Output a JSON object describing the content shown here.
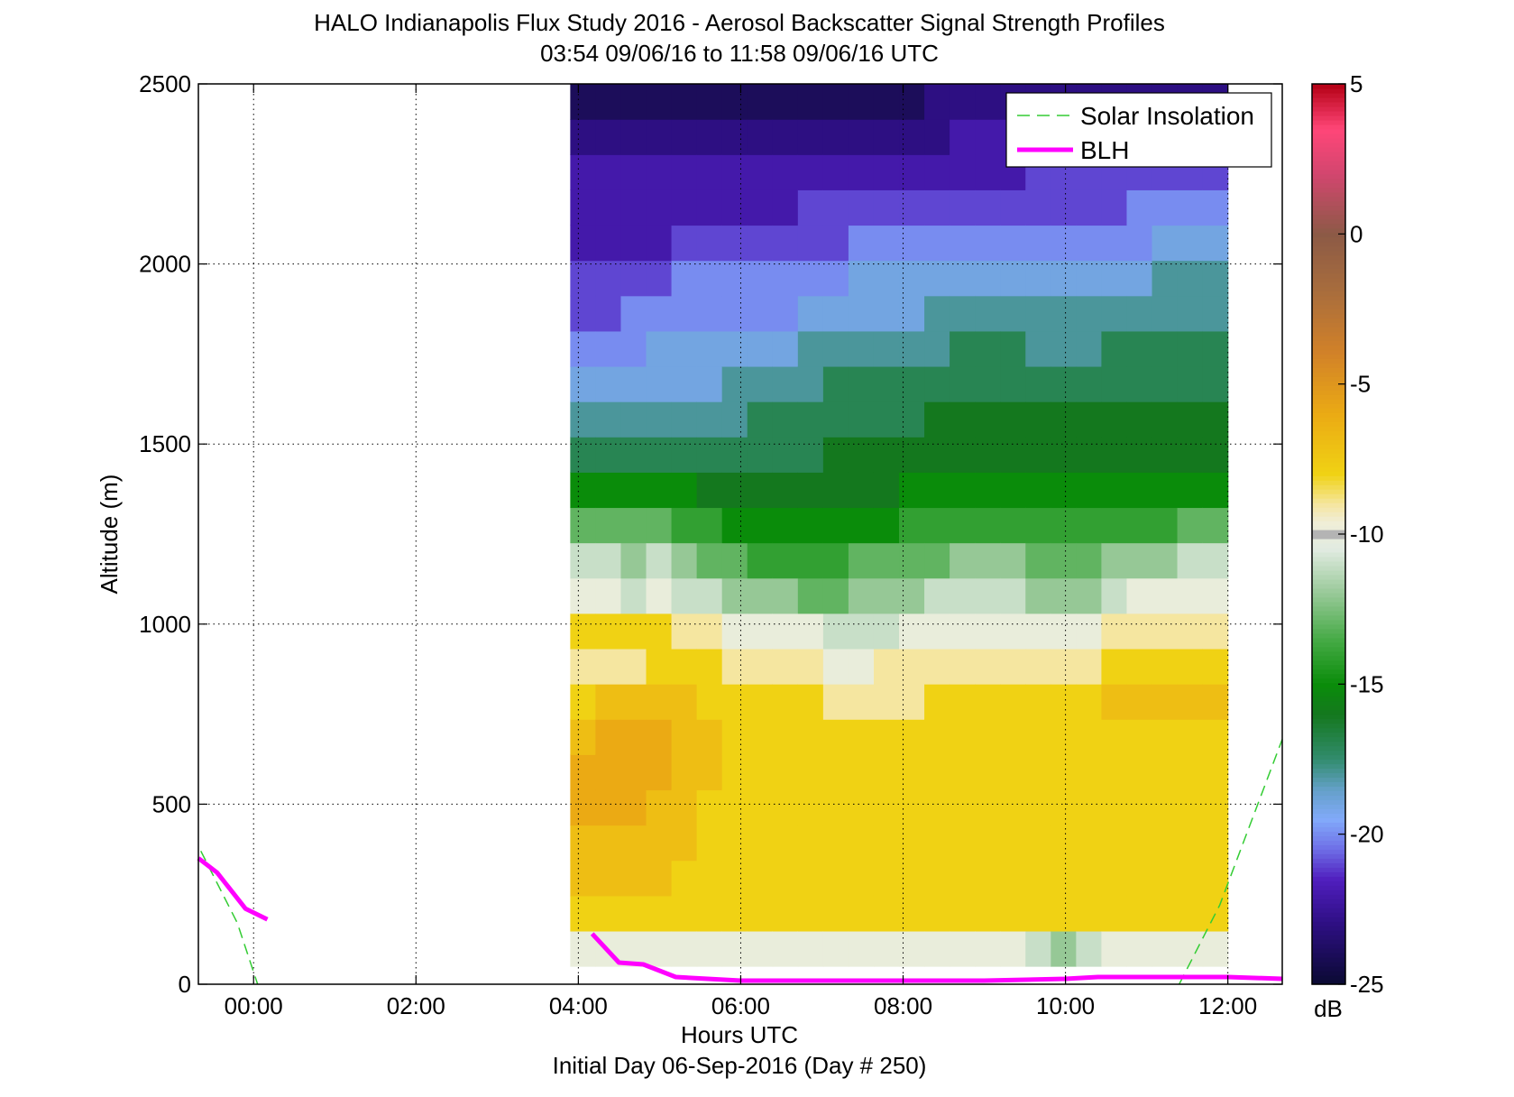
{
  "chart_data": {
    "type": "heatmap",
    "title": "HALO Indianapolis Flux Study 2016 - Aerosol Backscatter Signal Strength Profiles",
    "subtitle": "03:54 09/06/16 to 11:58 09/06/16  UTC",
    "xlabel": "Hours UTC",
    "xlabel2": "Initial Day 06-Sep-2016 (Day # 250)",
    "ylabel": "Altitude (m)",
    "xlim": [
      -0.68,
      12.67
    ],
    "ylim": [
      0,
      2500
    ],
    "x_ticks": [
      0,
      2,
      4,
      6,
      8,
      10,
      12
    ],
    "x_tick_labels": [
      "00:00",
      "02:00",
      "04:00",
      "06:00",
      "08:00",
      "10:00",
      "12:00"
    ],
    "y_ticks": [
      0,
      500,
      1000,
      1500,
      2000,
      2500
    ],
    "y_tick_labels": [
      "0",
      "500",
      "1000",
      "1500",
      "2000",
      "2500"
    ],
    "grid": true,
    "colorbar": {
      "label": "dB",
      "range": [
        -25,
        5
      ],
      "ticks": [
        -25,
        -20,
        -15,
        -10,
        -5,
        0,
        5
      ],
      "tick_labels": [
        "-25",
        "-20",
        "-15",
        "-10",
        "-5",
        "0",
        "5"
      ]
    },
    "heatmap": {
      "x_start": 3.9,
      "x_end": 12.0,
      "y_start": 50,
      "y_end": 2500,
      "no_data_color": "#b4b4b4",
      "profiles_db": [
        [
          -10,
          -8,
          -7,
          -7,
          -6,
          -6,
          -7,
          -8,
          -9,
          -8,
          -10,
          -11,
          -13,
          -15,
          -17,
          -18,
          -19,
          -20,
          -21,
          -21,
          -22,
          -22,
          -22,
          -23,
          -24
        ],
        [
          -10,
          -8,
          -7,
          -7,
          -6,
          -6,
          -6,
          -7,
          -9,
          -8,
          -10,
          -11,
          -13,
          -15,
          -17,
          -18,
          -19,
          -20,
          -21,
          -21,
          -22,
          -22,
          -22,
          -23,
          -24
        ],
        [
          -10,
          -8,
          -7,
          -7,
          -6,
          -6,
          -6,
          -7,
          -9,
          -8,
          -11,
          -12,
          -13,
          -15,
          -17,
          -18,
          -19,
          -20,
          -20,
          -21,
          -22,
          -22,
          -22,
          -23,
          -24
        ],
        [
          -10,
          -8,
          -7,
          -7,
          -7,
          -6,
          -6,
          -7,
          -8,
          -8,
          -10,
          -11,
          -13,
          -15,
          -17,
          -18,
          -19,
          -19,
          -20,
          -21,
          -22,
          -22,
          -22,
          -23,
          -24
        ],
        [
          -10,
          -8,
          -8,
          -7,
          -7,
          -7,
          -7,
          -7,
          -8,
          -9,
          -11,
          -12,
          -14,
          -15,
          -17,
          -18,
          -19,
          -19,
          -20,
          -20,
          -21,
          -22,
          -22,
          -23,
          -24
        ],
        [
          -10,
          -8,
          -8,
          -8,
          -8,
          -7,
          -7,
          -8,
          -8,
          -9,
          -11,
          -13,
          -14,
          -16,
          -17,
          -18,
          -19,
          -19,
          -20,
          -20,
          -21,
          -22,
          -22,
          -23,
          -24
        ],
        [
          -10,
          -8,
          -8,
          -8,
          -8,
          -8,
          -8,
          -8,
          -9,
          -10,
          -12,
          -13,
          -15,
          -16,
          -17,
          -18,
          -18,
          -19,
          -20,
          -20,
          -21,
          -22,
          -22,
          -23,
          -24
        ],
        [
          -10,
          -8,
          -8,
          -8,
          -8,
          -8,
          -8,
          -8,
          -9,
          -10,
          -12,
          -14,
          -15,
          -16,
          -17,
          -17,
          -18,
          -19,
          -20,
          -20,
          -21,
          -22,
          -22,
          -23,
          -24
        ],
        [
          -10,
          -8,
          -8,
          -8,
          -8,
          -8,
          -8,
          -8,
          -9,
          -10,
          -12,
          -14,
          -15,
          -16,
          -17,
          -17,
          -18,
          -19,
          -20,
          -20,
          -21,
          -22,
          -22,
          -23,
          -24
        ],
        [
          -10,
          -8,
          -8,
          -8,
          -8,
          -8,
          -8,
          -8,
          -9,
          -10,
          -13,
          -14,
          -15,
          -16,
          -17,
          -17,
          -18,
          -18,
          -19,
          -20,
          -21,
          -21,
          -22,
          -23,
          -24
        ],
        [
          -10,
          -8,
          -8,
          -8,
          -8,
          -8,
          -8,
          -9,
          -10,
          -11,
          -13,
          -14,
          -15,
          -16,
          -16,
          -17,
          -17,
          -18,
          -19,
          -20,
          -21,
          -21,
          -22,
          -23,
          -24
        ],
        [
          -10,
          -8,
          -8,
          -8,
          -8,
          -8,
          -8,
          -9,
          -10,
          -11,
          -12,
          -13,
          -15,
          -16,
          -16,
          -17,
          -17,
          -18,
          -19,
          -19,
          -20,
          -21,
          -22,
          -23,
          -24
        ],
        [
          -10,
          -8,
          -8,
          -8,
          -8,
          -8,
          -8,
          -9,
          -9,
          -11,
          -12,
          -13,
          -15,
          -16,
          -16,
          -17,
          -17,
          -18,
          -19,
          -19,
          -20,
          -21,
          -22,
          -23,
          -24
        ],
        [
          -10,
          -8,
          -8,
          -8,
          -8,
          -8,
          -8,
          -9,
          -9,
          -10,
          -12,
          -13,
          -14,
          -15,
          -16,
          -17,
          -17,
          -18,
          -19,
          -19,
          -20,
          -21,
          -22,
          -23,
          -24
        ],
        [
          -10,
          -8,
          -8,
          -8,
          -8,
          -8,
          -8,
          -8,
          -9,
          -10,
          -11,
          -13,
          -14,
          -15,
          -16,
          -16,
          -17,
          -18,
          -18,
          -19,
          -20,
          -21,
          -22,
          -23,
          -23
        ],
        [
          -10,
          -8,
          -8,
          -8,
          -8,
          -8,
          -8,
          -8,
          -9,
          -10,
          -11,
          -12,
          -14,
          -15,
          -16,
          -16,
          -17,
          -17,
          -18,
          -19,
          -20,
          -21,
          -22,
          -22,
          -23
        ],
        [
          -10,
          -8,
          -8,
          -8,
          -8,
          -8,
          -8,
          -8,
          -9,
          -10,
          -11,
          -12,
          -14,
          -15,
          -16,
          -16,
          -17,
          -17,
          -18,
          -19,
          -20,
          -21,
          -22,
          -22,
          -23
        ],
        [
          -10,
          -8,
          -8,
          -8,
          -8,
          -8,
          -8,
          -8,
          -9,
          -10,
          -11,
          -12,
          -14,
          -15,
          -16,
          -16,
          -17,
          -17,
          -18,
          -19,
          -20,
          -21,
          -22,
          -22,
          -23
        ],
        [
          -11,
          -8,
          -8,
          -8,
          -8,
          -8,
          -8,
          -8,
          -9,
          -10,
          -12,
          -13,
          -14,
          -15,
          -16,
          -16,
          -17,
          -18,
          -18,
          -19,
          -20,
          -21,
          -21,
          -22,
          -23
        ],
        [
          -12,
          -8,
          -8,
          -8,
          -8,
          -8,
          -8,
          -8,
          -9,
          -10,
          -12,
          -13,
          -14,
          -15,
          -16,
          -16,
          -17,
          -18,
          -18,
          -19,
          -20,
          -21,
          -21,
          -22,
          -23
        ],
        [
          -11,
          -8,
          -8,
          -8,
          -8,
          -8,
          -8,
          -8,
          -9,
          -10,
          -12,
          -13,
          -14,
          -15,
          -16,
          -16,
          -17,
          -18,
          -18,
          -19,
          -20,
          -21,
          -21,
          -22,
          -23
        ],
        [
          -10,
          -8,
          -8,
          -8,
          -8,
          -8,
          -8,
          -7,
          -8,
          -9,
          -11,
          -12,
          -14,
          -15,
          -16,
          -16,
          -17,
          -17,
          -18,
          -19,
          -20,
          -21,
          -21,
          -22,
          -23
        ],
        [
          -10,
          -8,
          -8,
          -8,
          -8,
          -8,
          -8,
          -7,
          -8,
          -9,
          -10,
          -12,
          -14,
          -15,
          -16,
          -16,
          -17,
          -17,
          -18,
          -19,
          -20,
          -20,
          -21,
          -22,
          -23
        ],
        [
          -10,
          -8,
          -8,
          -8,
          -8,
          -8,
          -8,
          -7,
          -8,
          -9,
          -10,
          -12,
          -14,
          -15,
          -16,
          -16,
          -17,
          -17,
          -18,
          -18,
          -19,
          -20,
          -21,
          -22,
          -23
        ],
        [
          -10,
          -8,
          -8,
          -8,
          -8,
          -8,
          -8,
          -7,
          -8,
          -9,
          -10,
          -11,
          -13,
          -15,
          -16,
          -16,
          -17,
          -17,
          -18,
          -18,
          -19,
          -20,
          -21,
          -22,
          -23
        ],
        [
          -10,
          -8,
          -8,
          -8,
          -8,
          -8,
          -8,
          -7,
          -8,
          -9,
          -10,
          -11,
          -13,
          -15,
          -16,
          -16,
          -17,
          -17,
          -18,
          -18,
          -19,
          -20,
          -21,
          -22,
          -23
        ]
      ]
    },
    "series": [
      {
        "name": "Solar Insolation",
        "segments": [
          {
            "x": [
              -0.65,
              -0.2,
              0.05
            ],
            "y": [
              370,
              170,
              0
            ]
          },
          {
            "x": [
              11.4,
              11.9,
              12.67
            ],
            "y": [
              0,
              220,
              680
            ]
          }
        ]
      },
      {
        "name": "BLH",
        "segments": [
          {
            "x": [
              -0.68,
              -0.45,
              -0.1,
              0.17
            ],
            "y": [
              350,
              310,
              210,
              180
            ]
          },
          {
            "x": [
              4.17,
              4.5,
              4.8,
              5.2,
              6.0,
              8.0,
              9.0,
              10.0,
              10.4,
              11.5,
              12.0,
              12.67
            ],
            "y": [
              140,
              60,
              55,
              20,
              10,
              10,
              10,
              15,
              20,
              20,
              20,
              15
            ]
          }
        ]
      }
    ],
    "legend_position": "top-right",
    "colors": {
      "solar": "#33cc33",
      "blh": "#ff00ff",
      "grid": "#000000"
    }
  }
}
